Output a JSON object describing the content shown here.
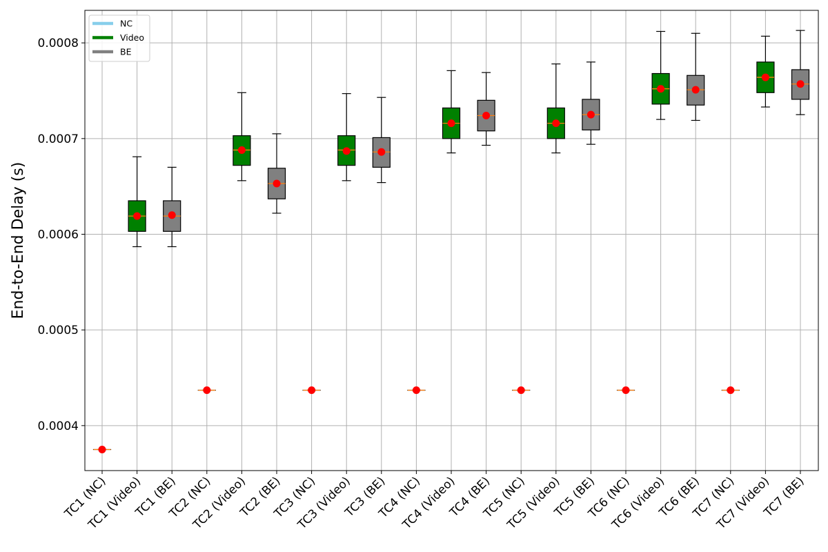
{
  "chart_data": {
    "type": "box",
    "title": "",
    "xlabel": "",
    "ylabel": "End-to-End Delay (s)",
    "ylim": [
      0.000353,
      0.000834
    ],
    "yticks": [
      {
        "value": 0.0004,
        "label": "0.0004"
      },
      {
        "value": 0.0005,
        "label": "0.0005"
      },
      {
        "value": 0.0006,
        "label": "0.0006"
      },
      {
        "value": 0.0007,
        "label": "0.0007"
      },
      {
        "value": 0.0008,
        "label": "0.0008"
      }
    ],
    "grid": true,
    "legend": {
      "position": "top-left",
      "entries": [
        {
          "label": "NC",
          "color": "#87ceeb"
        },
        {
          "label": "Video",
          "color": "#008000"
        },
        {
          "label": "BE",
          "color": "#808080"
        }
      ]
    },
    "colors": {
      "NC": "#87ceeb",
      "Video": "#008000",
      "BE": "#808080",
      "median": "#ff7f0e",
      "mean": "#ff0000"
    },
    "boxes": [
      {
        "label": "TC1 (NC)",
        "class": "NC",
        "whislo": 0.000375,
        "q1": 0.000375,
        "med": 0.000375,
        "q3": 0.000375,
        "whishi": 0.000375,
        "mean": 0.000375
      },
      {
        "label": "TC1 (Video)",
        "class": "Video",
        "whislo": 0.000587,
        "q1": 0.000603,
        "med": 0.000619,
        "q3": 0.000635,
        "whishi": 0.000681,
        "mean": 0.000619
      },
      {
        "label": "TC1 (BE)",
        "class": "BE",
        "whislo": 0.000587,
        "q1": 0.000603,
        "med": 0.000619,
        "q3": 0.000635,
        "whishi": 0.00067,
        "mean": 0.00062
      },
      {
        "label": "TC2 (NC)",
        "class": "NC",
        "whislo": 0.000437,
        "q1": 0.000437,
        "med": 0.000437,
        "q3": 0.000437,
        "whishi": 0.000437,
        "mean": 0.000437
      },
      {
        "label": "TC2 (Video)",
        "class": "Video",
        "whislo": 0.000656,
        "q1": 0.000672,
        "med": 0.000688,
        "q3": 0.000703,
        "whishi": 0.000748,
        "mean": 0.000688
      },
      {
        "label": "TC2 (BE)",
        "class": "BE",
        "whislo": 0.000622,
        "q1": 0.000637,
        "med": 0.000653,
        "q3": 0.000669,
        "whishi": 0.000705,
        "mean": 0.000653
      },
      {
        "label": "TC3 (NC)",
        "class": "NC",
        "whislo": 0.000437,
        "q1": 0.000437,
        "med": 0.000437,
        "q3": 0.000437,
        "whishi": 0.000437,
        "mean": 0.000437
      },
      {
        "label": "TC3 (Video)",
        "class": "Video",
        "whislo": 0.000656,
        "q1": 0.000672,
        "med": 0.000688,
        "q3": 0.000703,
        "whishi": 0.000747,
        "mean": 0.000687
      },
      {
        "label": "TC3 (BE)",
        "class": "BE",
        "whislo": 0.000654,
        "q1": 0.00067,
        "med": 0.000686,
        "q3": 0.000701,
        "whishi": 0.000743,
        "mean": 0.000686
      },
      {
        "label": "TC4 (NC)",
        "class": "NC",
        "whislo": 0.000437,
        "q1": 0.000437,
        "med": 0.000437,
        "q3": 0.000437,
        "whishi": 0.000437,
        "mean": 0.000437
      },
      {
        "label": "TC4 (Video)",
        "class": "Video",
        "whislo": 0.000685,
        "q1": 0.0007,
        "med": 0.000716,
        "q3": 0.000732,
        "whishi": 0.000771,
        "mean": 0.000716
      },
      {
        "label": "TC4 (BE)",
        "class": "BE",
        "whislo": 0.000693,
        "q1": 0.000708,
        "med": 0.000724,
        "q3": 0.00074,
        "whishi": 0.000769,
        "mean": 0.000724
      },
      {
        "label": "TC5 (NC)",
        "class": "NC",
        "whislo": 0.000437,
        "q1": 0.000437,
        "med": 0.000437,
        "q3": 0.000437,
        "whishi": 0.000437,
        "mean": 0.000437
      },
      {
        "label": "TC5 (Video)",
        "class": "Video",
        "whislo": 0.000685,
        "q1": 0.0007,
        "med": 0.000716,
        "q3": 0.000732,
        "whishi": 0.000778,
        "mean": 0.000716
      },
      {
        "label": "TC5 (BE)",
        "class": "BE",
        "whislo": 0.000694,
        "q1": 0.000709,
        "med": 0.000725,
        "q3": 0.000741,
        "whishi": 0.00078,
        "mean": 0.000725
      },
      {
        "label": "TC6 (NC)",
        "class": "NC",
        "whislo": 0.000437,
        "q1": 0.000437,
        "med": 0.000437,
        "q3": 0.000437,
        "whishi": 0.000437,
        "mean": 0.000437
      },
      {
        "label": "TC6 (Video)",
        "class": "Video",
        "whislo": 0.00072,
        "q1": 0.000736,
        "med": 0.000752,
        "q3": 0.000768,
        "whishi": 0.000812,
        "mean": 0.000752
      },
      {
        "label": "TC6 (BE)",
        "class": "BE",
        "whislo": 0.000719,
        "q1": 0.000735,
        "med": 0.000751,
        "q3": 0.000766,
        "whishi": 0.00081,
        "mean": 0.000751
      },
      {
        "label": "TC7 (NC)",
        "class": "NC",
        "whislo": 0.000437,
        "q1": 0.000437,
        "med": 0.000437,
        "q3": 0.000437,
        "whishi": 0.000437,
        "mean": 0.000437
      },
      {
        "label": "TC7 (Video)",
        "class": "Video",
        "whislo": 0.000733,
        "q1": 0.000748,
        "med": 0.000764,
        "q3": 0.00078,
        "whishi": 0.000807,
        "mean": 0.000764
      },
      {
        "label": "TC7 (BE)",
        "class": "BE",
        "whislo": 0.000725,
        "q1": 0.000741,
        "med": 0.000757,
        "q3": 0.000772,
        "whishi": 0.000813,
        "mean": 0.000757
      }
    ]
  }
}
